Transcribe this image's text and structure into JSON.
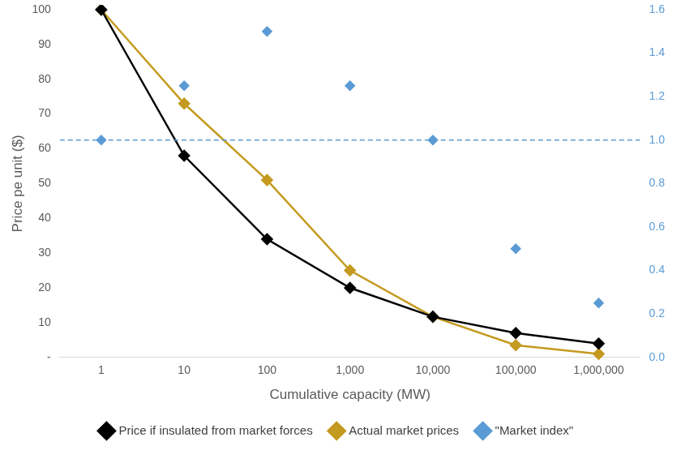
{
  "chart_data": {
    "type": "line",
    "x_label": "Cumulative capacity (MW)",
    "y_label": "Price pe unit ($)",
    "categories": [
      "1",
      "10",
      "100",
      "1,000",
      "10,000",
      "100,000",
      "1,000,000"
    ],
    "series": [
      {
        "name": "Price if insulated from market forces",
        "color": "#000000",
        "marker": "diamond",
        "values": [
          100,
          58,
          34,
          20,
          11.7,
          7,
          4
        ]
      },
      {
        "name": "Actual market prices",
        "color": "#c49a1f",
        "marker": "diamond",
        "values": [
          100,
          73,
          51,
          25,
          11.7,
          3.5,
          1
        ]
      },
      {
        "name": "\"Market index\"",
        "type": "scatter",
        "axis": "y2",
        "color": "#5b9bd5",
        "marker": "diamond",
        "values": [
          1,
          1.25,
          1.5,
          1.25,
          1,
          0.5,
          0.25
        ]
      }
    ],
    "ylim": [
      0,
      100
    ],
    "yticks": [
      {
        "value": 0,
        "label": "-"
      },
      10,
      20,
      30,
      40,
      50,
      60,
      70,
      80,
      90,
      100
    ],
    "y2lim": [
      0,
      1.6
    ],
    "y2ticks": [
      {
        "value": 0,
        "label": "0.0"
      },
      0.2,
      0.4,
      0.6,
      0.8,
      {
        "value": 1,
        "label": "1.0"
      },
      1.2,
      1.4,
      1.6
    ],
    "y2_reference": {
      "value": 1,
      "line_style": "dashed",
      "color": "#5b9bd5"
    },
    "grid": false,
    "legend": "bottom"
  }
}
